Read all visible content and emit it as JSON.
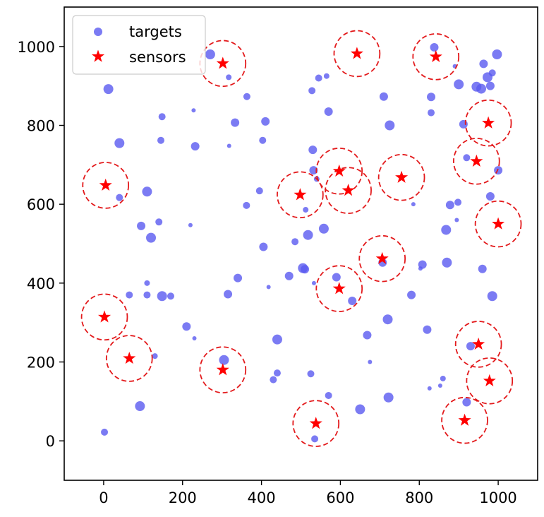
{
  "chart_data": {
    "type": "scatter",
    "xlim": [
      -100,
      1100
    ],
    "ylim": [
      -100,
      1100
    ],
    "x_ticks": [
      0,
      200,
      400,
      600,
      800,
      1000
    ],
    "y_ticks": [
      0,
      200,
      400,
      600,
      800,
      1000
    ],
    "x_tick_labels": [
      "0",
      "200",
      "400",
      "600",
      "800",
      "1000"
    ],
    "y_tick_labels": [
      "0",
      "200",
      "400",
      "600",
      "800",
      "1000"
    ],
    "grid": false,
    "legend": {
      "placement": "top-left",
      "entries": [
        "targets",
        "sensors"
      ]
    },
    "colors": {
      "targets": "#5a5af0",
      "sensors": "#ff0000",
      "coverage_circle": "#e31a1c"
    },
    "sensor_coverage_radius": 58,
    "series": [
      {
        "name": "targets",
        "marker": "circle",
        "points": [
          [
            12,
            892
          ],
          [
            2,
            22
          ],
          [
            40,
            755
          ],
          [
            40,
            617
          ],
          [
            95,
            545
          ],
          [
            110,
            632
          ],
          [
            120,
            515
          ],
          [
            140,
            555
          ],
          [
            148,
            822
          ],
          [
            145,
            762
          ],
          [
            110,
            370
          ],
          [
            110,
            400
          ],
          [
            148,
            367
          ],
          [
            170,
            367
          ],
          [
            65,
            370
          ],
          [
            130,
            215
          ],
          [
            92,
            88
          ],
          [
            210,
            290
          ],
          [
            230,
            260
          ],
          [
            232,
            747
          ],
          [
            228,
            838
          ],
          [
            220,
            547
          ],
          [
            270,
            980
          ],
          [
            317,
            922
          ],
          [
            318,
            748
          ],
          [
            315,
            372
          ],
          [
            305,
            205
          ],
          [
            333,
            807
          ],
          [
            340,
            413
          ],
          [
            363,
            873
          ],
          [
            362,
            597
          ],
          [
            395,
            634
          ],
          [
            403,
            762
          ],
          [
            410,
            810
          ],
          [
            405,
            492
          ],
          [
            418,
            390
          ],
          [
            430,
            155
          ],
          [
            440,
            172
          ],
          [
            440,
            257
          ],
          [
            470,
            418
          ],
          [
            485,
            505
          ],
          [
            505,
            438
          ],
          [
            510,
            435
          ],
          [
            512,
            586
          ],
          [
            518,
            522
          ],
          [
            525,
            170
          ],
          [
            528,
            888
          ],
          [
            530,
            738
          ],
          [
            533,
            400
          ],
          [
            532,
            686
          ],
          [
            535,
            5
          ],
          [
            540,
            664
          ],
          [
            545,
            920
          ],
          [
            558,
            538
          ],
          [
            565,
            925
          ],
          [
            570,
            835
          ],
          [
            570,
            115
          ],
          [
            590,
            415
          ],
          [
            630,
            355
          ],
          [
            650,
            80
          ],
          [
            668,
            268
          ],
          [
            675,
            200
          ],
          [
            707,
            452
          ],
          [
            710,
            873
          ],
          [
            720,
            308
          ],
          [
            722,
            110
          ],
          [
            725,
            800
          ],
          [
            780,
            370
          ],
          [
            785,
            600
          ],
          [
            803,
            437
          ],
          [
            808,
            447
          ],
          [
            820,
            282
          ],
          [
            826,
            133
          ],
          [
            830,
            832
          ],
          [
            830,
            872
          ],
          [
            838,
            998
          ],
          [
            853,
            140
          ],
          [
            860,
            158
          ],
          [
            868,
            535
          ],
          [
            870,
            452
          ],
          [
            878,
            598
          ],
          [
            890,
            950
          ],
          [
            895,
            560
          ],
          [
            898,
            605
          ],
          [
            900,
            904
          ],
          [
            912,
            803
          ],
          [
            920,
            718
          ],
          [
            920,
            98
          ],
          [
            930,
            240
          ],
          [
            945,
            898
          ],
          [
            957,
            893
          ],
          [
            960,
            436
          ],
          [
            963,
            956
          ],
          [
            973,
            922
          ],
          [
            980,
            900
          ],
          [
            980,
            620
          ],
          [
            985,
            933
          ],
          [
            985,
            367
          ],
          [
            997,
            980
          ],
          [
            1000,
            686
          ]
        ],
        "sizes": [
          7,
          5,
          7,
          5,
          6,
          7,
          7,
          5,
          5,
          5,
          5,
          4,
          7,
          5,
          5,
          4,
          7,
          6,
          3,
          6,
          3,
          3,
          7,
          4,
          3,
          6,
          7,
          6,
          6,
          5,
          5,
          5,
          5,
          6,
          6,
          3,
          5,
          5,
          7,
          6,
          5,
          7,
          6,
          4,
          7,
          5,
          5,
          6,
          3,
          6,
          5,
          4,
          5,
          7,
          4,
          6,
          5,
          6,
          6,
          7,
          6,
          3,
          6,
          6,
          7,
          7,
          7,
          6,
          3,
          3,
          6,
          6,
          3,
          5,
          6,
          6,
          3,
          4,
          7,
          7,
          6,
          3,
          3,
          5,
          7,
          6,
          5,
          6,
          6,
          7,
          7,
          6,
          6,
          7,
          6,
          6,
          5,
          7,
          7,
          6
        ]
      },
      {
        "name": "sensors",
        "marker": "star",
        "points": [
          [
            302,
            957
          ],
          [
            642,
            982
          ],
          [
            842,
            974
          ],
          [
            975,
            806
          ],
          [
            945,
            709
          ],
          [
            597,
            684
          ],
          [
            620,
            635
          ],
          [
            755,
            668
          ],
          [
            5,
            648
          ],
          [
            498,
            624
          ],
          [
            1000,
            550
          ],
          [
            706,
            462
          ],
          [
            597,
            386
          ],
          [
            2,
            314
          ],
          [
            65,
            209
          ],
          [
            302,
            180
          ],
          [
            950,
            245
          ],
          [
            978,
            152
          ],
          [
            538,
            44
          ],
          [
            915,
            52
          ]
        ]
      }
    ]
  }
}
